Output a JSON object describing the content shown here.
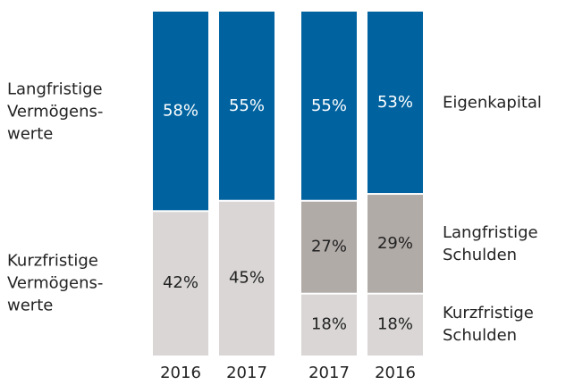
{
  "chart_data": [
    {
      "type": "bar",
      "stacked": true,
      "ylim": [
        0,
        100
      ],
      "categories": [
        "2016",
        "2017"
      ],
      "series": [
        {
          "name": "Kurzfristige\nVermögens-\nwerte",
          "color": "#d9d6d5",
          "label_color": "#222222",
          "values": [
            42,
            45
          ],
          "value_labels": [
            "42%",
            "45%"
          ]
        },
        {
          "name": "Langfristige\nVermögens-\nwerte",
          "color": "#0063a0",
          "label_color": "#ffffff",
          "values": [
            58,
            55
          ],
          "value_labels": [
            "58%",
            "55%"
          ]
        }
      ],
      "legend": "left"
    },
    {
      "type": "bar",
      "stacked": true,
      "ylim": [
        0,
        100
      ],
      "categories": [
        "2017",
        "2016"
      ],
      "series": [
        {
          "name": "Kurzfristige\nSchulden",
          "color": "#d9d6d5",
          "label_color": "#222222",
          "values": [
            18,
            18
          ],
          "value_labels": [
            "18%",
            "18%"
          ]
        },
        {
          "name": "Langfristige\nSchulden",
          "color": "#b1aba8",
          "label_color": "#222222",
          "values": [
            27,
            29
          ],
          "value_labels": [
            "27%",
            "29%"
          ]
        },
        {
          "name": "Eigenkapital",
          "color": "#0063a0",
          "label_color": "#ffffff",
          "values": [
            55,
            53
          ],
          "value_labels": [
            "55%",
            "53%"
          ]
        }
      ],
      "legend": "right"
    }
  ]
}
